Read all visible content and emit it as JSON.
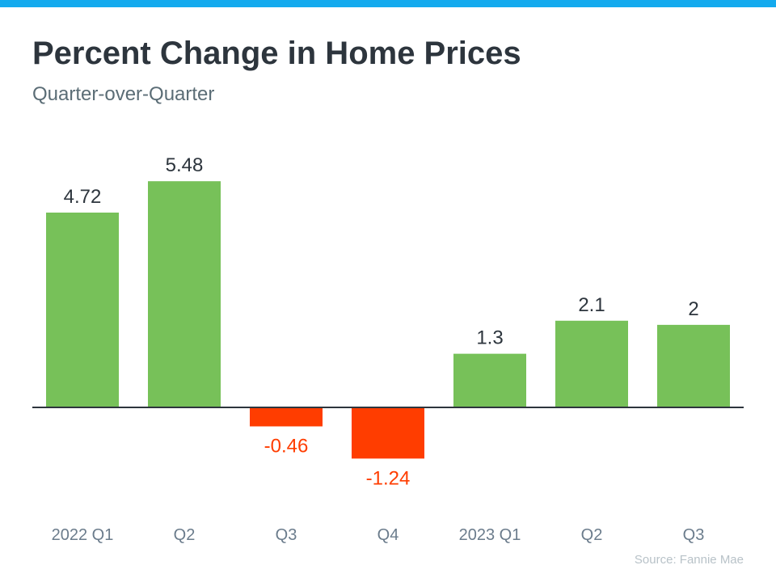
{
  "header": {
    "title": "Percent Change in Home Prices",
    "subtitle": "Quarter-over-Quarter"
  },
  "source": "Source: Fannie Mae",
  "colors": {
    "accent_bar": "#14aaee",
    "positive": "#77c159",
    "negative": "#ff3d00",
    "axis": "#2d353d",
    "tick_label": "#6b7c8c"
  },
  "chart_data": {
    "type": "bar",
    "title": "Percent Change in Home Prices",
    "subtitle": "Quarter-over-Quarter",
    "categories": [
      "2022 Q1",
      "Q2",
      "Q3",
      "Q4",
      "2023 Q1",
      "Q2",
      "Q3"
    ],
    "values": [
      4.72,
      5.48,
      -0.46,
      -1.24,
      1.3,
      2.1,
      2
    ],
    "labels": [
      "4.72",
      "5.48",
      "-0.46",
      "-1.24",
      "1.3",
      "2.1",
      "2"
    ],
    "xlabel": "",
    "ylabel": "",
    "ylim": [
      -1.5,
      6
    ],
    "grid": false,
    "data_labels": true
  }
}
